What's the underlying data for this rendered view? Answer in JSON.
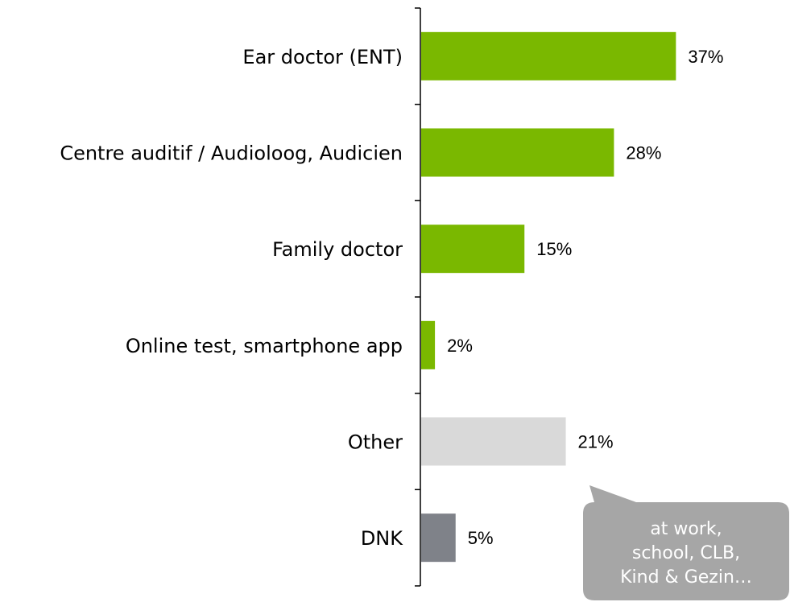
{
  "chart_data": {
    "type": "bar",
    "orientation": "horizontal",
    "categories": [
      "Ear doctor (ENT)",
      "Centre auditif / Audioloog, Audicien",
      "Family doctor",
      "Online test, smartphone app",
      "Other",
      "DNK"
    ],
    "values": [
      37,
      28,
      15,
      2,
      21,
      5
    ],
    "value_labels": [
      "37%",
      "28%",
      "15%",
      "2%",
      "21%",
      "5%"
    ],
    "bar_colors": [
      "#7ab800",
      "#7ab800",
      "#7ab800",
      "#7ab800",
      "#d9d9d9",
      "#7f8289"
    ],
    "xlim": [
      0,
      50
    ],
    "grid": false,
    "title": "",
    "xlabel": "",
    "ylabel": ""
  },
  "callout": {
    "lines": [
      "at work,",
      "school, CLB,",
      "Kind & Gezin…"
    ],
    "color": "#a6a6a6"
  }
}
